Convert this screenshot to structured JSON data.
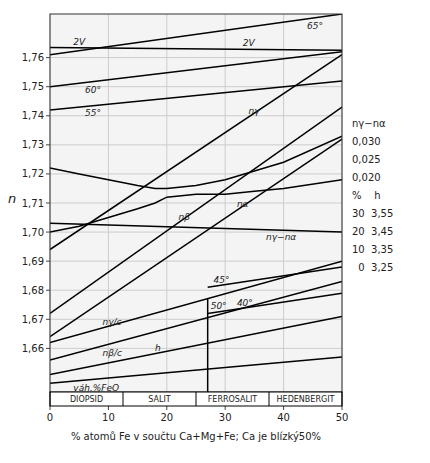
{
  "chart_data": {
    "type": "line",
    "xlabel": "% atomů Fe v součtu Ca+Mg+Fe; Ca je blízký50%",
    "ylabel": "n",
    "color": "#000000",
    "grid": true,
    "xlim": [
      0,
      50
    ],
    "ylim": [
      1.645,
      1.775
    ],
    "xticks": [
      0,
      10,
      20,
      30,
      40,
      50
    ],
    "yticks": [
      {
        "value": 1.66,
        "label": "1,66"
      },
      {
        "value": 1.67,
        "label": "1,67"
      },
      {
        "value": 1.68,
        "label": "1,68"
      },
      {
        "value": 1.69,
        "label": "1,69"
      },
      {
        "value": 1.7,
        "label": "1,70"
      },
      {
        "value": 1.71,
        "label": "1,71"
      },
      {
        "value": 1.72,
        "label": "1,72"
      },
      {
        "value": 1.73,
        "label": "1,73"
      },
      {
        "value": 1.74,
        "label": "1,74"
      },
      {
        "value": 1.75,
        "label": "1,75"
      },
      {
        "value": 1.76,
        "label": "1,76"
      }
    ],
    "categories": [
      "DIOPSID",
      "SALIT",
      "FERROSALIT",
      "HEDENBERGIT"
    ],
    "category_edges": [
      0,
      12.5,
      25,
      37.5,
      50
    ],
    "series": [
      {
        "name": "nγ/c",
        "x": [
          0,
          50
        ],
        "values": [
          1.662,
          1.69
        ]
      },
      {
        "name": "nβ/c",
        "x": [
          0,
          50
        ],
        "values": [
          1.656,
          1.683
        ]
      },
      {
        "name": "h",
        "x": [
          0,
          50
        ],
        "values": [
          1.651,
          1.671
        ]
      },
      {
        "name": "váh.%FeO",
        "x": [
          0,
          50
        ],
        "values": [
          1.648,
          1.657
        ]
      },
      {
        "name": "nγ",
        "x": [
          0,
          50
        ],
        "values": [
          1.694,
          1.761
        ]
      },
      {
        "name": "nβ",
        "x": [
          0,
          50
        ],
        "values": [
          1.672,
          1.743
        ]
      },
      {
        "name": "nα",
        "x": [
          0,
          50
        ],
        "values": [
          1.664,
          1.732
        ]
      },
      {
        "name": "nγ−nα",
        "x": [
          0,
          50
        ],
        "values": [
          1.703,
          1.7
        ]
      },
      {
        "x": [
          0,
          5,
          10,
          15,
          18,
          20,
          25,
          30,
          35,
          40,
          50
        ],
        "values": [
          1.722,
          1.72,
          1.718,
          1.716,
          1.715,
          1.715,
          1.716,
          1.718,
          1.721,
          1.724,
          1.733
        ]
      },
      {
        "x": [
          0,
          5,
          10,
          15,
          18,
          20,
          25,
          30,
          35,
          40,
          50
        ],
        "values": [
          1.7,
          1.702,
          1.705,
          1.708,
          1.71,
          1.712,
          1.713,
          1.713,
          1.714,
          1.715,
          1.718
        ]
      },
      {
        "name": "2V",
        "x": [
          0,
          50
        ],
        "values": [
          1.7635,
          1.7625
        ]
      },
      {
        "name": "65°",
        "x": [
          0,
          50
        ],
        "values": [
          1.761,
          1.775
        ]
      },
      {
        "name": "60°",
        "x": [
          0,
          50
        ],
        "values": [
          1.75,
          1.762
        ]
      },
      {
        "name": "55°",
        "x": [
          0,
          50
        ],
        "values": [
          1.742,
          1.752
        ]
      },
      {
        "name": "50°",
        "x": [
          27,
          27
        ],
        "values": [
          1.645,
          1.67712
        ]
      },
      {
        "name": "45°",
        "x": [
          27,
          50
        ],
        "values": [
          1.681,
          1.688
        ]
      },
      {
        "name": "40°",
        "x": [
          27,
          50
        ],
        "values": [
          1.672,
          1.679
        ]
      }
    ],
    "annotations": [
      "nγ−nα",
      "0,030",
      "0,025",
      "0,020",
      "%    h",
      "30  3,55",
      "20  3,45",
      "10  3,35",
      "  0  3,25"
    ]
  }
}
